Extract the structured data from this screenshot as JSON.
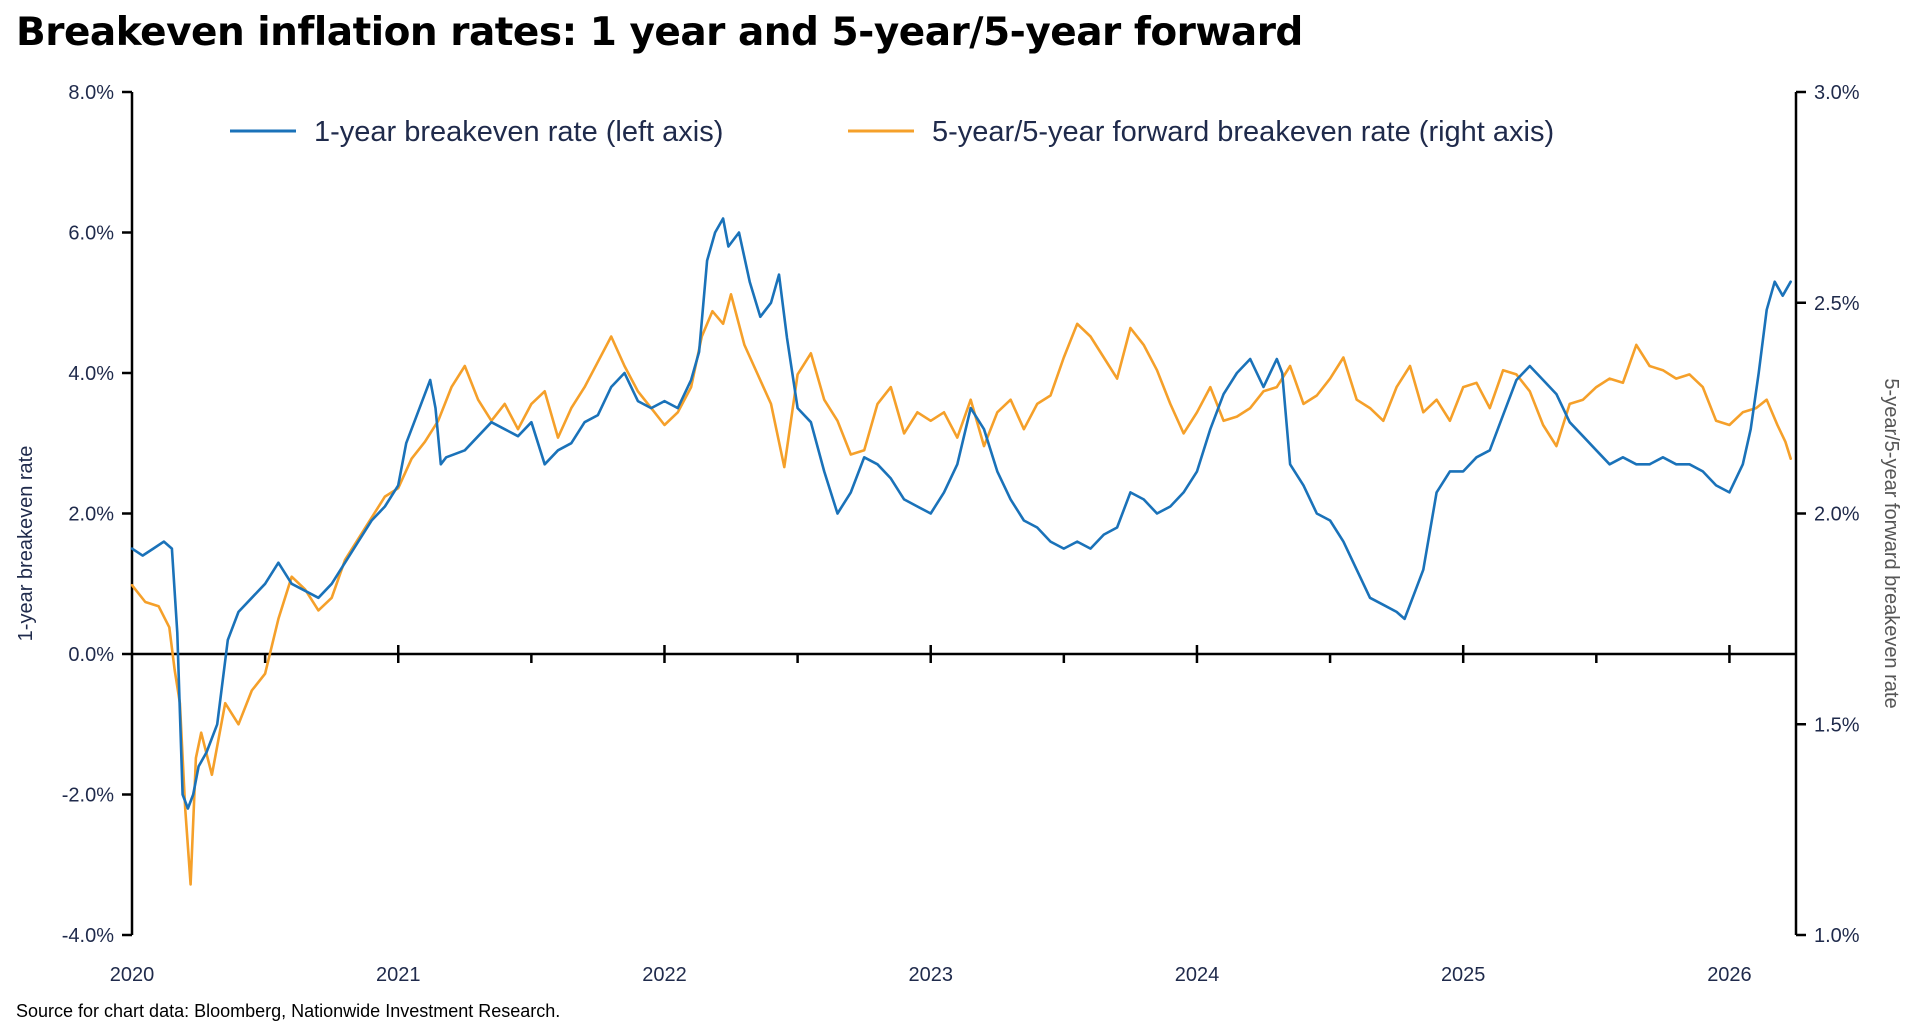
{
  "chart_data": {
    "type": "line",
    "title": "Breakeven inflation rates: 1 year and 5-year/5-year forward",
    "source": "Source for chart data: Bloomberg, Nationwide Investment Research.",
    "x_ticks": [
      "2020",
      "2021",
      "2022",
      "2023",
      "2024",
      "2025",
      "2026"
    ],
    "xlim": [
      2020.0,
      2026.25
    ],
    "y_left": {
      "label": "1-year breakeven rate",
      "lim": [
        -4.0,
        8.0
      ],
      "ticks": [
        -4.0,
        -2.0,
        0.0,
        2.0,
        4.0,
        6.0,
        8.0
      ],
      "tick_labels": [
        "-4.0%",
        "-2.0%",
        "0.0%",
        "2.0%",
        "4.0%",
        "6.0%",
        "8.0%"
      ]
    },
    "y_right": {
      "label": "5-year/5-year forward breakeven rate",
      "lim": [
        1.0,
        3.0
      ],
      "ticks": [
        1.0,
        1.5,
        2.0,
        2.5,
        3.0
      ],
      "tick_labels": [
        "1.0%",
        "1.5%",
        "2.0%",
        "2.5%",
        "3.0%"
      ]
    },
    "legend_position": "top",
    "grid": false,
    "zero_line": true,
    "series": [
      {
        "name": "1-year breakeven rate (left axis)",
        "axis": "left",
        "color": "#1a72b9",
        "x": [
          2020.0,
          2020.04,
          2020.08,
          2020.12,
          2020.15,
          2020.17,
          2020.19,
          2020.21,
          2020.23,
          2020.25,
          2020.28,
          2020.32,
          2020.36,
          2020.4,
          2020.45,
          2020.5,
          2020.55,
          2020.6,
          2020.65,
          2020.7,
          2020.75,
          2020.8,
          2020.85,
          2020.9,
          2020.95,
          2021.0,
          2021.03,
          2021.06,
          2021.09,
          2021.12,
          2021.14,
          2021.16,
          2021.18,
          2021.25,
          2021.35,
          2021.4,
          2021.45,
          2021.5,
          2021.55,
          2021.6,
          2021.65,
          2021.7,
          2021.75,
          2021.8,
          2021.85,
          2021.9,
          2021.95,
          2022.0,
          2022.05,
          2022.1,
          2022.13,
          2022.16,
          2022.19,
          2022.22,
          2022.24,
          2022.28,
          2022.32,
          2022.36,
          2022.4,
          2022.43,
          2022.46,
          2022.5,
          2022.55,
          2022.6,
          2022.65,
          2022.7,
          2022.75,
          2022.8,
          2022.85,
          2022.9,
          2022.95,
          2023.0,
          2023.05,
          2023.1,
          2023.15,
          2023.2,
          2023.25,
          2023.3,
          2023.35,
          2023.4,
          2023.45,
          2023.5,
          2023.55,
          2023.6,
          2023.65,
          2023.7,
          2023.75,
          2023.8,
          2023.85,
          2023.9,
          2023.95,
          2024.0,
          2024.05,
          2024.1,
          2024.15,
          2024.2,
          2024.25,
          2024.3,
          2024.32,
          2024.35,
          2024.4,
          2024.45,
          2024.5,
          2024.55,
          2024.6,
          2024.65,
          2024.7,
          2024.75,
          2024.78,
          2024.82,
          2024.85,
          2024.9,
          2024.95,
          2025.0,
          2025.05,
          2025.1,
          2025.15,
          2025.2,
          2025.25,
          2025.3,
          2025.35,
          2025.4,
          2025.45,
          2025.5,
          2025.55,
          2025.6,
          2025.65,
          2025.7,
          2025.75,
          2025.8,
          2025.85,
          2025.9,
          2025.95,
          2026.0,
          2026.05,
          2026.08,
          2026.11,
          2026.14,
          2026.17,
          2026.2,
          2026.23
        ],
        "y": [
          1.5,
          1.4,
          1.5,
          1.6,
          1.5,
          0.3,
          -2.0,
          -2.2,
          -2.0,
          -1.6,
          -1.4,
          -1.0,
          0.2,
          0.6,
          0.8,
          1.0,
          1.3,
          1.0,
          0.9,
          0.8,
          1.0,
          1.3,
          1.6,
          1.9,
          2.1,
          2.4,
          3.0,
          3.3,
          3.6,
          3.9,
          3.5,
          2.7,
          2.8,
          2.9,
          3.3,
          3.2,
          3.1,
          3.3,
          2.7,
          2.9,
          3.0,
          3.3,
          3.4,
          3.8,
          4.0,
          3.6,
          3.5,
          3.6,
          3.5,
          3.9,
          4.3,
          5.6,
          6.0,
          6.2,
          5.8,
          6.0,
          5.3,
          4.8,
          5.0,
          5.4,
          4.5,
          3.5,
          3.3,
          2.6,
          2.0,
          2.3,
          2.8,
          2.7,
          2.5,
          2.2,
          2.1,
          2.0,
          2.3,
          2.7,
          3.5,
          3.2,
          2.6,
          2.2,
          1.9,
          1.8,
          1.6,
          1.5,
          1.6,
          1.5,
          1.7,
          1.8,
          2.3,
          2.2,
          2.0,
          2.1,
          2.3,
          2.6,
          3.2,
          3.7,
          4.0,
          4.2,
          3.8,
          4.2,
          4.0,
          2.7,
          2.4,
          2.0,
          1.9,
          1.6,
          1.2,
          0.8,
          0.7,
          0.6,
          0.5,
          0.9,
          1.2,
          2.3,
          2.6,
          2.6,
          2.8,
          2.9,
          3.4,
          3.9,
          4.1,
          3.9,
          3.7,
          3.3,
          3.1,
          2.9,
          2.7,
          2.8,
          2.7,
          2.7,
          2.8,
          2.7,
          2.7,
          2.6,
          2.4,
          2.3,
          2.7,
          3.2,
          4.0,
          4.9,
          5.3,
          5.1,
          5.3
        ]
      },
      {
        "name": "5-year/5-year forward breakeven rate (right axis)",
        "axis": "right",
        "color": "#f5a02a",
        "x": [
          2020.0,
          2020.05,
          2020.1,
          2020.14,
          2020.16,
          2020.18,
          2020.2,
          2020.22,
          2020.24,
          2020.26,
          2020.3,
          2020.35,
          2020.4,
          2020.45,
          2020.5,
          2020.55,
          2020.6,
          2020.65,
          2020.7,
          2020.75,
          2020.8,
          2020.85,
          2020.9,
          2020.95,
          2021.0,
          2021.05,
          2021.1,
          2021.15,
          2021.2,
          2021.25,
          2021.3,
          2021.35,
          2021.4,
          2021.45,
          2021.5,
          2021.55,
          2021.6,
          2021.65,
          2021.7,
          2021.75,
          2021.8,
          2021.85,
          2021.9,
          2021.95,
          2022.0,
          2022.05,
          2022.1,
          2022.14,
          2022.18,
          2022.22,
          2022.25,
          2022.3,
          2022.35,
          2022.4,
          2022.45,
          2022.5,
          2022.55,
          2022.6,
          2022.65,
          2022.7,
          2022.75,
          2022.8,
          2022.85,
          2022.9,
          2022.95,
          2023.0,
          2023.05,
          2023.1,
          2023.15,
          2023.2,
          2023.25,
          2023.3,
          2023.35,
          2023.4,
          2023.45,
          2023.5,
          2023.55,
          2023.6,
          2023.65,
          2023.7,
          2023.75,
          2023.8,
          2023.85,
          2023.9,
          2023.95,
          2024.0,
          2024.05,
          2024.1,
          2024.15,
          2024.2,
          2024.25,
          2024.3,
          2024.35,
          2024.4,
          2024.45,
          2024.5,
          2024.55,
          2024.6,
          2024.65,
          2024.7,
          2024.75,
          2024.8,
          2024.85,
          2024.9,
          2024.95,
          2025.0,
          2025.05,
          2025.1,
          2025.15,
          2025.2,
          2025.25,
          2025.3,
          2025.35,
          2025.4,
          2025.45,
          2025.5,
          2025.55,
          2025.6,
          2025.65,
          2025.7,
          2025.75,
          2025.8,
          2025.85,
          2025.9,
          2025.95,
          2026.0,
          2026.05,
          2026.1,
          2026.14,
          2026.18,
          2026.21,
          2026.23
        ],
        "y": [
          1.83,
          1.79,
          1.78,
          1.73,
          1.63,
          1.55,
          1.3,
          1.12,
          1.42,
          1.48,
          1.38,
          1.55,
          1.5,
          1.58,
          1.62,
          1.75,
          1.85,
          1.82,
          1.77,
          1.8,
          1.89,
          1.94,
          1.99,
          2.04,
          2.06,
          2.13,
          2.17,
          2.22,
          2.3,
          2.35,
          2.27,
          2.22,
          2.26,
          2.2,
          2.26,
          2.29,
          2.18,
          2.25,
          2.3,
          2.36,
          2.42,
          2.35,
          2.29,
          2.25,
          2.21,
          2.24,
          2.3,
          2.42,
          2.48,
          2.45,
          2.52,
          2.4,
          2.33,
          2.26,
          2.11,
          2.33,
          2.38,
          2.27,
          2.22,
          2.14,
          2.15,
          2.26,
          2.3,
          2.19,
          2.24,
          2.22,
          2.24,
          2.18,
          2.27,
          2.16,
          2.24,
          2.27,
          2.2,
          2.26,
          2.28,
          2.37,
          2.45,
          2.42,
          2.37,
          2.32,
          2.44,
          2.4,
          2.34,
          2.26,
          2.19,
          2.24,
          2.3,
          2.22,
          2.23,
          2.25,
          2.29,
          2.3,
          2.35,
          2.26,
          2.28,
          2.32,
          2.37,
          2.27,
          2.25,
          2.22,
          2.3,
          2.35,
          2.24,
          2.27,
          2.22,
          2.3,
          2.31,
          2.25,
          2.34,
          2.33,
          2.29,
          2.21,
          2.16,
          2.26,
          2.27,
          2.3,
          2.32,
          2.31,
          2.4,
          2.35,
          2.34,
          2.32,
          2.33,
          2.3,
          2.22,
          2.21,
          2.24,
          2.25,
          2.27,
          2.21,
          2.17,
          2.13
        ]
      }
    ]
  }
}
